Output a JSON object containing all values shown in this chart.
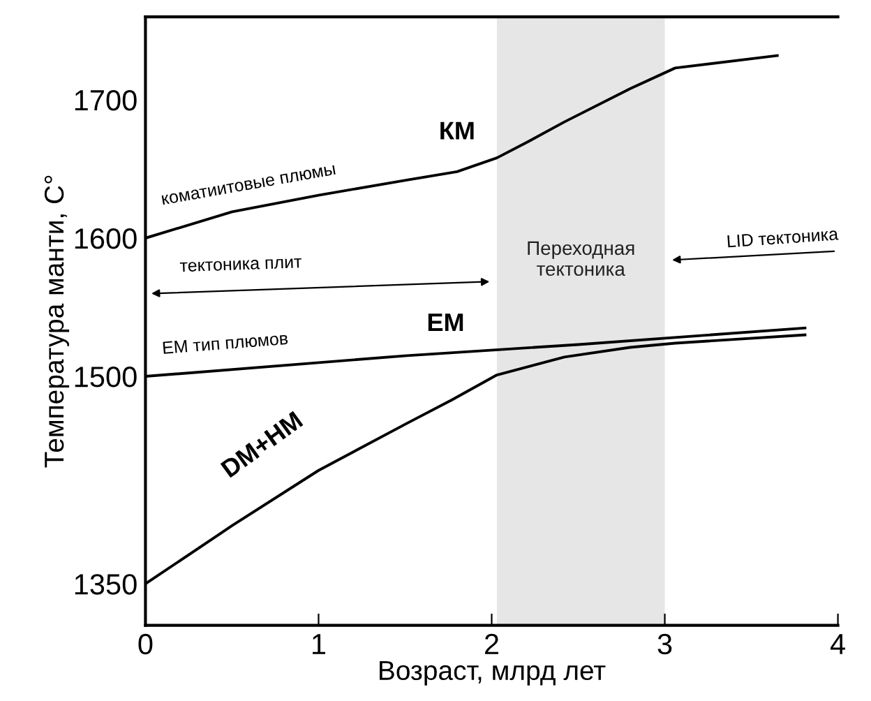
{
  "chart_data": {
    "type": "line",
    "xlabel": "Возраст, млрд лет",
    "ylabel": "Температура манти, С°",
    "xlim": [
      0,
      4
    ],
    "xticks": [
      0,
      1,
      2,
      3,
      4
    ],
    "ylim": [
      1320,
      1760
    ],
    "yticks": [
      1350,
      1500,
      1600,
      1700
    ],
    "series": [
      {
        "name": "КМ",
        "color": "#000000",
        "x": [
          0,
          0.5,
          1,
          1.51,
          1.8,
          2.03,
          2.2,
          2.42,
          2.8,
          3.06,
          3.65
        ],
        "values": [
          1600,
          1619,
          1631,
          1642,
          1648,
          1658,
          1669,
          1684,
          1708,
          1723,
          1732
        ]
      },
      {
        "name": "ЕМ",
        "color": "#000000",
        "x": [
          0,
          1.51,
          2.5,
          3.81
        ],
        "values": [
          1500,
          1515,
          1523,
          1535
        ]
      },
      {
        "name": "DM+HM",
        "color": "#000000",
        "x": [
          0,
          0.5,
          1,
          1.51,
          1.77,
          2.03,
          2.42,
          2.8,
          3.06,
          3.81
        ],
        "values": [
          1350,
          1392,
          1432,
          1466,
          1483,
          1501,
          1514,
          1521,
          1524,
          1530
        ]
      }
    ],
    "bands": [
      {
        "axis": "x",
        "from": 2.03,
        "to": 3,
        "label": "Переходная\nтектоника",
        "color": "#e6e6e6"
      }
    ],
    "annotations": [
      "коматиитовые плюмы",
      "тектоника плит",
      "LID тектоника",
      "ЕМ тип плюмов"
    ],
    "grid": false,
    "legend": false,
    "marker": "none",
    "line_style": "solid"
  }
}
